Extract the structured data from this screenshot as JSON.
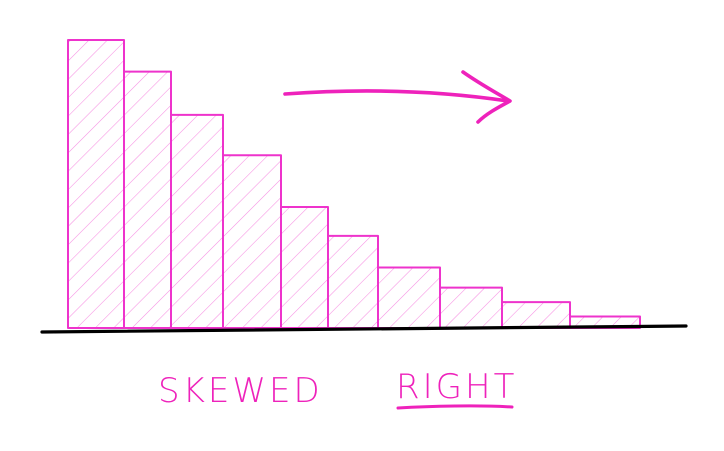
{
  "chart_data": {
    "type": "bar",
    "bars": [
      100,
      89,
      74,
      60,
      42,
      32,
      21,
      14,
      9,
      4
    ],
    "ylim": [
      0,
      100
    ],
    "xlabel": "",
    "ylabel": ""
  },
  "colors": {
    "bars": "#ee33cc",
    "axis": "#000000",
    "arrow": "#ee22bb",
    "text": "#ee22bb"
  },
  "labels": {
    "word1": "SKEWED",
    "word2": "RIGHT"
  },
  "icons": {
    "arrow": "arrow-right-icon"
  }
}
